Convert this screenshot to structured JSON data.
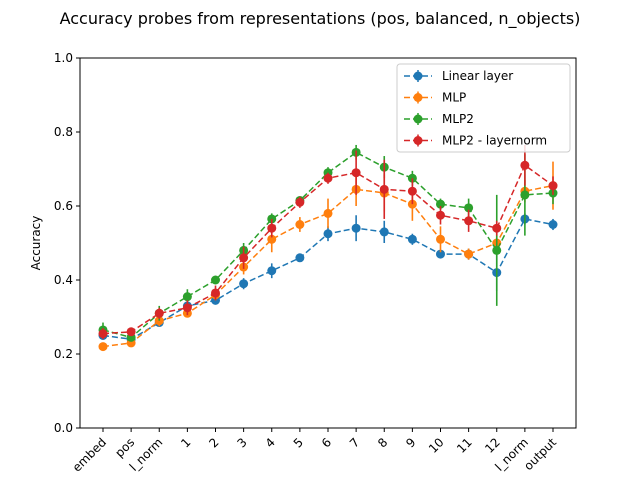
{
  "chart_data": {
    "type": "line",
    "title": "Accuracy probes from representations (pos, balanced, n_objects)",
    "xlabel": "",
    "ylabel": "Accuracy",
    "ylim": [
      0.0,
      1.0
    ],
    "yticks": [
      "0.0",
      "0.2",
      "0.4",
      "0.6",
      "0.8",
      "1.0"
    ],
    "categories": [
      "embed",
      "pos",
      "l_norm",
      "1",
      "2",
      "3",
      "4",
      "5",
      "6",
      "7",
      "8",
      "9",
      "10",
      "11",
      "12",
      "l_norm",
      "output"
    ],
    "grid": false,
    "legend_position": "top-right",
    "series": [
      {
        "name": "Linear layer",
        "color": "#1f77b4",
        "values": [
          0.25,
          0.24,
          0.285,
          0.33,
          0.345,
          0.39,
          0.425,
          0.46,
          0.525,
          0.54,
          0.53,
          0.51,
          0.47,
          0.47,
          0.42,
          0.565,
          0.55
        ],
        "errors": [
          0.01,
          0.01,
          0.01,
          0.01,
          0.01,
          0.015,
          0.02,
          0.01,
          0.02,
          0.035,
          0.03,
          0.015,
          0.01,
          0.015,
          0.05,
          0.015,
          0.015
        ]
      },
      {
        "name": "MLP",
        "color": "#ff7f0e",
        "values": [
          0.22,
          0.23,
          0.29,
          0.31,
          0.36,
          0.435,
          0.51,
          0.55,
          0.58,
          0.645,
          0.635,
          0.605,
          0.51,
          0.47,
          0.5,
          0.64,
          0.655
        ],
        "errors": [
          0.01,
          0.01,
          0.015,
          0.01,
          0.015,
          0.02,
          0.035,
          0.02,
          0.04,
          0.045,
          0.05,
          0.045,
          0.035,
          0.015,
          0.02,
          0.03,
          0.065
        ]
      },
      {
        "name": "MLP2",
        "color": "#2ca02c",
        "values": [
          0.265,
          0.245,
          0.31,
          0.355,
          0.4,
          0.48,
          0.565,
          0.615,
          0.69,
          0.745,
          0.705,
          0.675,
          0.605,
          0.595,
          0.48,
          0.63,
          0.635
        ],
        "errors": [
          0.02,
          0.01,
          0.02,
          0.02,
          0.01,
          0.02,
          0.015,
          0.01,
          0.015,
          0.02,
          0.03,
          0.02,
          0.015,
          0.025,
          0.15,
          0.11,
          0.03
        ]
      },
      {
        "name": "MLP2 - layernorm",
        "color": "#d62728",
        "values": [
          0.255,
          0.26,
          0.31,
          0.325,
          0.365,
          0.46,
          0.54,
          0.61,
          0.675,
          0.69,
          0.645,
          0.64,
          0.575,
          0.56,
          0.54,
          0.71,
          0.655
        ],
        "errors": [
          0.015,
          0.01,
          0.015,
          0.02,
          0.02,
          0.03,
          0.025,
          0.015,
          0.015,
          0.06,
          0.08,
          0.035,
          0.025,
          0.03,
          0.02,
          0.055,
          0.025
        ]
      }
    ]
  }
}
